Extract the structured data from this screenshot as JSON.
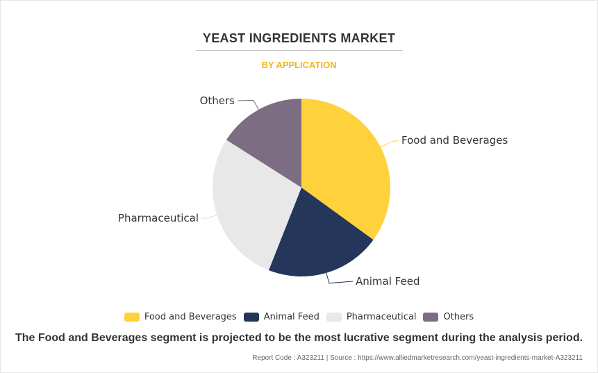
{
  "chart_data": {
    "type": "pie",
    "title": "YEAST INGREDIENTS MARKET",
    "subtitle": "BY APPLICATION",
    "categories": [
      "Food and Beverages",
      "Animal Feed",
      "Pharmaceutical",
      "Others"
    ],
    "values": [
      35,
      21,
      28,
      16
    ],
    "colors": [
      "#ffd13b",
      "#243659",
      "#e8e8e8",
      "#7c6d83"
    ],
    "legend_position": "bottom"
  },
  "legend": {
    "items": [
      {
        "label": "Food and Beverages",
        "color": "#ffd13b"
      },
      {
        "label": "Animal Feed",
        "color": "#243659"
      },
      {
        "label": "Pharmaceutical",
        "color": "#e8e8e8"
      },
      {
        "label": "Others",
        "color": "#7c6d83"
      }
    ]
  },
  "caption": "The Food and Beverages segment is projected to be the most lucrative segment during the analysis period.",
  "source": "Report Code : A323211  |  Source : https://www.alliedmarketresearch.com/yeast-ingredients-market-A323211"
}
